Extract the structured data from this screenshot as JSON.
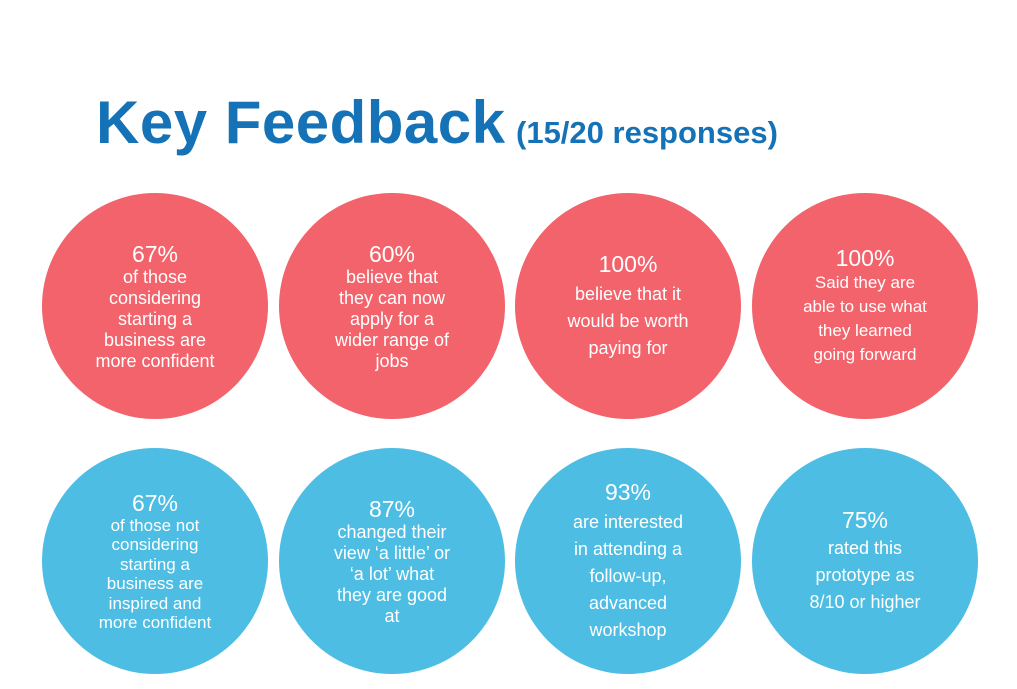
{
  "header": {
    "title": "Key Feedback",
    "subtitle": "(15/20 responses)"
  },
  "colors": {
    "title": "#1572b6",
    "red_circle": "#f2636c",
    "blue_circle": "#4dbde3"
  },
  "stats": [
    {
      "percent": "67%",
      "lines": [
        "of those",
        "considering",
        "starting a",
        "business are",
        "more confident"
      ]
    },
    {
      "percent": "60%",
      "lines": [
        "believe that",
        "they can now",
        "apply for a",
        "wider range of",
        "jobs"
      ]
    },
    {
      "percent": "100%",
      "lines": [
        "believe that it",
        "would be worth",
        "paying for"
      ]
    },
    {
      "percent": "100%",
      "lines": [
        "Said they are",
        "able to use what",
        "they learned",
        "going forward"
      ]
    },
    {
      "percent": "67%",
      "lines": [
        "of those not",
        "considering",
        "starting a",
        "business are",
        "inspired and",
        "more confident"
      ]
    },
    {
      "percent": "87%",
      "lines": [
        "changed their",
        "view ‘a little’ or",
        "‘a lot’ what",
        "they are good",
        "at"
      ]
    },
    {
      "percent": "93%",
      "lines": [
        "are interested",
        "in attending a",
        "follow-up,",
        "advanced",
        "workshop"
      ]
    },
    {
      "percent": "75%",
      "lines": [
        "rated this",
        "prototype as",
        "8/10 or higher"
      ]
    }
  ]
}
